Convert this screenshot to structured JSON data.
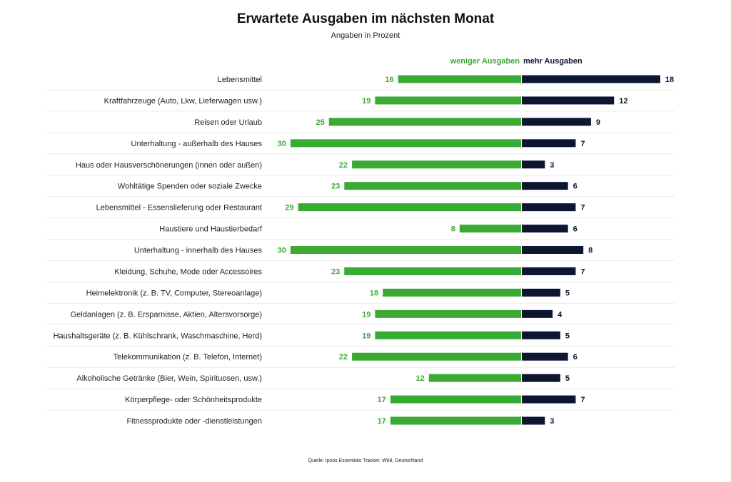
{
  "title": "Erwartete Ausgaben im nächsten Monat",
  "subtitle": "Angaben in Prozent",
  "source": "Quelle: Ipsos Essentials Tracker, W68, Deutschland",
  "chart_data": {
    "type": "bar",
    "orientation": "horizontal-diverging",
    "title": "Erwartete Ausgaben im nächsten Monat",
    "subtitle": "Angaben in Prozent",
    "legend_position": "top",
    "categories": [
      "Lebensmittel",
      "Kraftfahrzeuge (Auto, Lkw, Lieferwagen usw.)",
      "Reisen oder Urlaub",
      "Unterhaltung - außerhalb des Hauses",
      "Haus oder Hausverschönerungen (innen oder außen)",
      "Wohltätige Spenden oder soziale Zwecke",
      "Lebensmittel - Essenslieferung oder Restaurant",
      "Haustiere und Haustierbedarf",
      "Unterhaltung - innerhalb des Hauses",
      "Kleidung, Schuhe, Mode oder Accessoires",
      "Heimelektronik (z. B. TV, Computer, Stereoanlage)",
      "Geldanlagen (z. B. Ersparnisse, Aktien, Altersvorsorge)",
      "Haushaltsgeräte (z. B. Kühlschrank, Waschmaschine, Herd)",
      "Telekommunikation (z. B. Telefon, Internet)",
      "Alkoholische Getränke (Bier, Wein, Spirituosen, usw.)",
      "Körperpflege- oder Schönheitsprodukte",
      "Fitnessprodukte oder -dienstleistungen"
    ],
    "series": [
      {
        "name": "weniger Ausgaben",
        "color": "#3aaa35",
        "values": [
          16,
          19,
          25,
          30,
          22,
          23,
          29,
          8,
          30,
          23,
          18,
          19,
          19,
          22,
          12,
          17,
          17
        ]
      },
      {
        "name": "mehr Ausgaben",
        "color": "#0d1630",
        "values": [
          18,
          12,
          9,
          7,
          3,
          6,
          7,
          6,
          8,
          7,
          5,
          4,
          5,
          6,
          5,
          7,
          3
        ]
      }
    ],
    "grid": false
  }
}
